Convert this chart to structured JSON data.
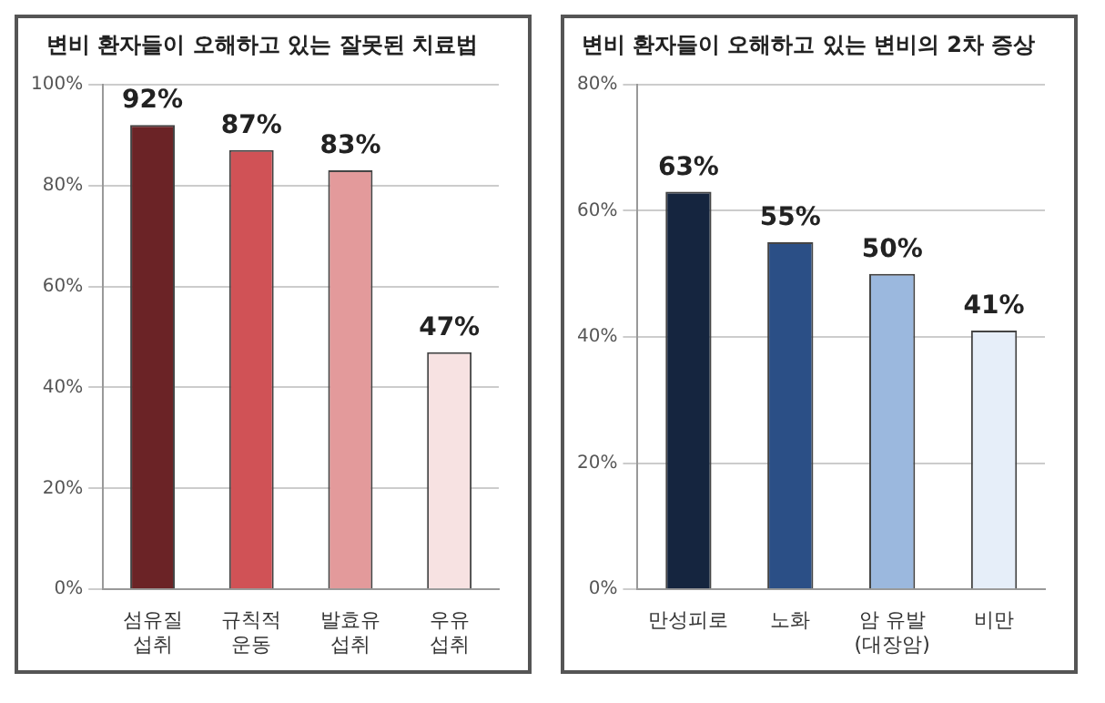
{
  "chart_data": [
    {
      "type": "bar",
      "title": "변비 환자들이 오해하고 있는 잘못된 치료법",
      "categories": [
        "섬유질\n섭취",
        "규칙적\n운동",
        "발효유\n섭취",
        "우유\n섭취"
      ],
      "values": [
        92,
        87,
        83,
        47
      ],
      "colors": [
        "#6b2326",
        "#d05256",
        "#e39a9b",
        "#f7e2e2"
      ],
      "value_labels": [
        "92%",
        "87%",
        "83%",
        "47%"
      ],
      "ylim": [
        0,
        100
      ],
      "yticks": [
        {
          "value": 0,
          "label": "0%"
        },
        {
          "value": 20,
          "label": "20%"
        },
        {
          "value": 40,
          "label": "40%"
        },
        {
          "value": 60,
          "label": "60%"
        },
        {
          "value": 80,
          "label": "80%"
        },
        {
          "value": 100,
          "label": "100%"
        }
      ],
      "grid": "y",
      "legend": false
    },
    {
      "type": "bar",
      "title": "변비 환자들이 오해하고 있는 변비의 2차 증상",
      "categories": [
        "만성피로",
        "노화",
        "암 유발\n(대장암)",
        "비만"
      ],
      "values": [
        63,
        55,
        50,
        41
      ],
      "colors": [
        "#15253f",
        "#2b4f86",
        "#9bb8de",
        "#e6eef9"
      ],
      "value_labels": [
        "63%",
        "55%",
        "50%",
        "41%"
      ],
      "ylim": [
        0,
        80
      ],
      "yticks": [
        {
          "value": 0,
          "label": "0%"
        },
        {
          "value": 20,
          "label": "20%"
        },
        {
          "value": 40,
          "label": "40%"
        },
        {
          "value": 60,
          "label": "60%"
        },
        {
          "value": 80,
          "label": "80%"
        }
      ],
      "grid": "y",
      "legend": false
    }
  ]
}
